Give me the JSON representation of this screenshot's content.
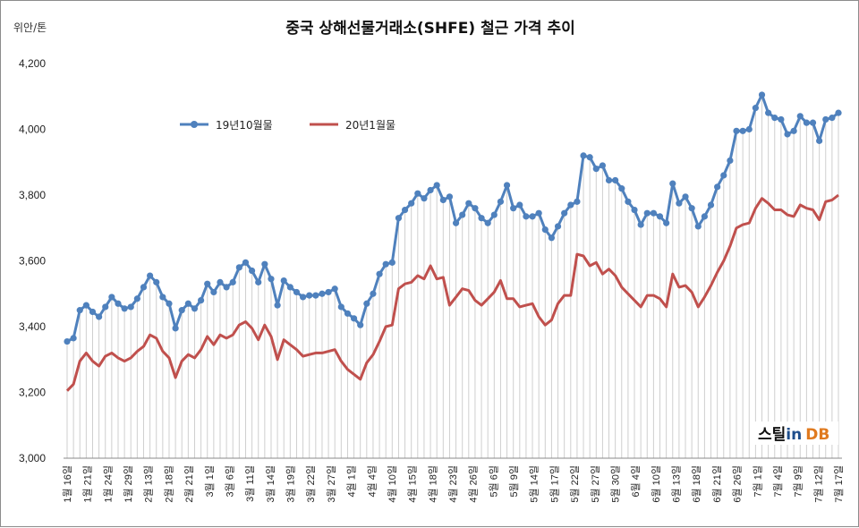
{
  "chart_data": {
    "type": "line",
    "title": "중국 상해선물거래소(SHFE) 철근 가격 추이",
    "unit_label": "위안/톤",
    "ylim": [
      3000,
      4200
    ],
    "yticks": [
      "3,000",
      "3,200",
      "3,400",
      "3,600",
      "3,800",
      "4,000",
      "4,200"
    ],
    "grid": "vertical drop lines from upper series",
    "legend_position": "top-left",
    "x_labels": [
      "1월 16일",
      "1월 21일",
      "1월 24일",
      "1월 29일",
      "2월 13일",
      "2월 18일",
      "2월 21일",
      "3월 1일",
      "3월 6일",
      "3월 11일",
      "3월 14일",
      "3월 19일",
      "3월 22일",
      "3월 27일",
      "4월 1일",
      "4월 4일",
      "4월 10일",
      "4월 15일",
      "4월 18일",
      "4월 23일",
      "4월 26일",
      "5월 6일",
      "5월 9일",
      "5월 14일",
      "5월 17일",
      "5월 22일",
      "5월 27일",
      "5월 30일",
      "6월 4일",
      "6월 10일",
      "6월 13일",
      "6월 18일",
      "6월 21일",
      "6월 26일",
      "7월 1일",
      "7월 4일",
      "7월 9일",
      "7월 12일",
      "7월 17일"
    ],
    "series": [
      {
        "name": "19년10월물",
        "color": "#4f81bd",
        "values": [
          3355,
          3365,
          3450,
          3465,
          3445,
          3430,
          3460,
          3490,
          3470,
          3455,
          3460,
          3485,
          3520,
          3555,
          3535,
          3490,
          3470,
          3395,
          3450,
          3470,
          3455,
          3480,
          3530,
          3505,
          3535,
          3520,
          3535,
          3580,
          3595,
          3570,
          3535,
          3590,
          3545,
          3465,
          3540,
          3520,
          3505,
          3490,
          3495,
          3495,
          3500,
          3505,
          3515,
          3460,
          3440,
          3425,
          3405,
          3470,
          3500,
          3560,
          3590,
          3595,
          3730,
          3755,
          3775,
          3805,
          3790,
          3815,
          3830,
          3785,
          3795,
          3715,
          3740,
          3775,
          3760,
          3730,
          3715,
          3740,
          3780,
          3830,
          3760,
          3770,
          3735,
          3735,
          3745,
          3695,
          3670,
          3705,
          3745,
          3770,
          3780,
          3920,
          3915,
          3880,
          3890,
          3845,
          3845,
          3820,
          3780,
          3755,
          3710,
          3745,
          3745,
          3735,
          3715,
          3835,
          3775,
          3795,
          3760,
          3705,
          3735,
          3770,
          3825,
          3860,
          3905,
          3995,
          3995,
          4000,
          4065,
          4105,
          4050,
          4035,
          4030,
          3985,
          3995,
          4040,
          4020,
          4020,
          3965,
          4030,
          4035,
          4050
        ]
      },
      {
        "name": "20년1월물",
        "color": "#c0504d",
        "values": [
          3205,
          3225,
          3295,
          3320,
          3295,
          3280,
          3310,
          3320,
          3305,
          3295,
          3305,
          3325,
          3340,
          3375,
          3365,
          3325,
          3305,
          3245,
          3295,
          3315,
          3305,
          3330,
          3370,
          3345,
          3375,
          3365,
          3375,
          3405,
          3415,
          3395,
          3360,
          3405,
          3370,
          3300,
          3360,
          3345,
          3330,
          3310,
          3315,
          3320,
          3320,
          3325,
          3330,
          3295,
          3270,
          3255,
          3240,
          3290,
          3315,
          3355,
          3400,
          3405,
          3515,
          3530,
          3535,
          3555,
          3545,
          3585,
          3545,
          3550,
          3465,
          3490,
          3515,
          3510,
          3480,
          3465,
          3485,
          3505,
          3540,
          3485,
          3485,
          3460,
          3465,
          3470,
          3430,
          3405,
          3420,
          3470,
          3495,
          3495,
          3620,
          3615,
          3585,
          3595,
          3560,
          3575,
          3555,
          3520,
          3500,
          3480,
          3460,
          3495,
          3495,
          3485,
          3460,
          3560,
          3520,
          3525,
          3505,
          3460,
          3490,
          3525,
          3565,
          3600,
          3645,
          3700,
          3710,
          3715,
          3760,
          3790,
          3775,
          3755,
          3755,
          3740,
          3735,
          3770,
          3760,
          3755,
          3725,
          3780,
          3785,
          3800
        ]
      }
    ]
  },
  "watermark": {
    "part1": "스틸",
    "part2": "in",
    "part3": "DB"
  }
}
